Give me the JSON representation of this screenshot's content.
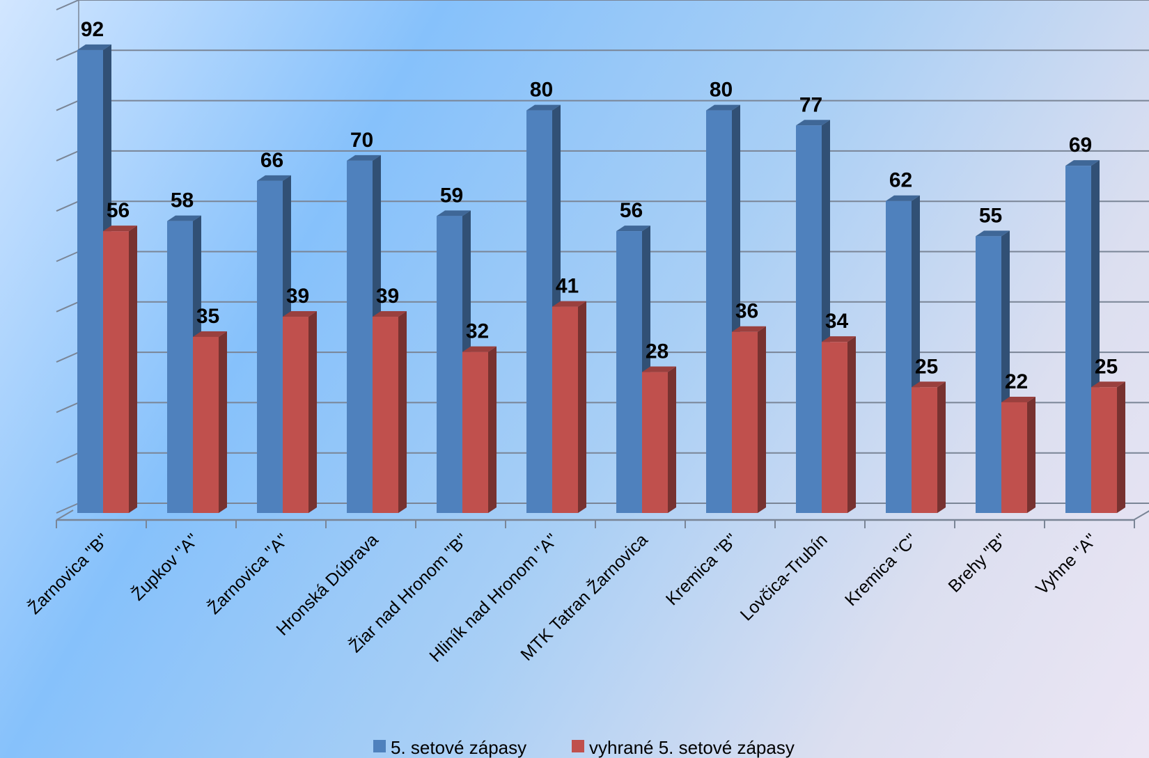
{
  "chart_data": {
    "type": "bar",
    "style": "3d-clustered-column",
    "categories": [
      "Žarnovica \"B\"",
      "Župkov \"A\"",
      "Žarnovica \"A\"",
      "Hronská Dúbrava",
      "Žiar nad Hronom \"B\"",
      "Hliník nad Hronom \"A\"",
      "MTK Tatran Žarnovica",
      "Kremica \"B\"",
      "Lovčica-Trubín",
      "Kremica \"C\"",
      "Brehy \"B\"",
      "Vyhne \"A\""
    ],
    "series": [
      {
        "name": "5. setové zápasy",
        "color": "#4f81bd",
        "values": [
          92,
          58,
          66,
          70,
          59,
          80,
          56,
          80,
          77,
          62,
          55,
          69
        ]
      },
      {
        "name": "vyhrané 5. setové zápasy",
        "color": "#c0504d",
        "values": [
          56,
          35,
          39,
          39,
          32,
          41,
          28,
          36,
          34,
          25,
          22,
          25
        ]
      }
    ],
    "ylim": [
      0,
      100
    ],
    "gridlines": true,
    "y_tick_labels_shown": false,
    "legend_position": "bottom"
  }
}
